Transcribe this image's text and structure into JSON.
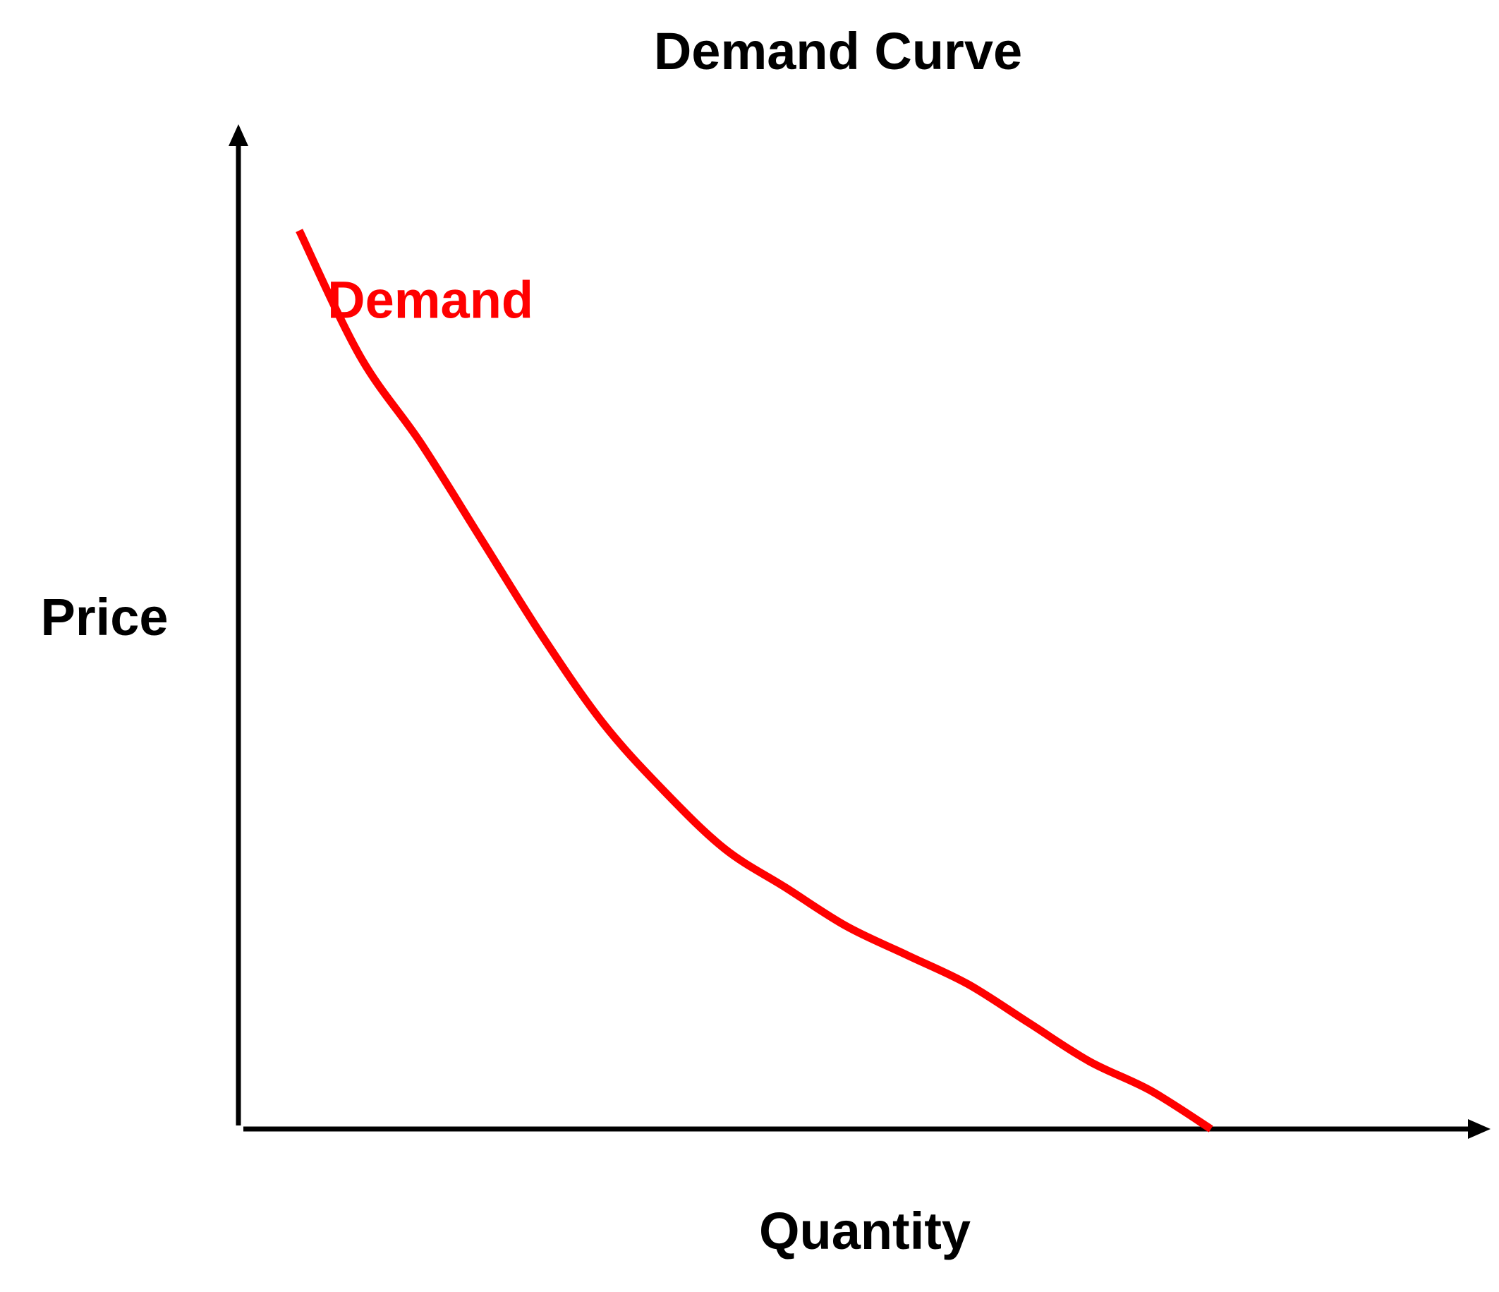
{
  "chart_data": {
    "type": "line",
    "title": "Demand Curve",
    "xlabel": "Quantity",
    "ylabel": "Price",
    "grid": false,
    "axes_arrows": true,
    "tick_labels": false,
    "series": [
      {
        "name": "Demand",
        "color": "#ff0000",
        "x": [
          0.05,
          0.1,
          0.15,
          0.2,
          0.25,
          0.3,
          0.35,
          0.4,
          0.45,
          0.5,
          0.55,
          0.6,
          0.65,
          0.7,
          0.75,
          0.8
        ],
        "y": [
          0.93,
          0.8,
          0.71,
          0.61,
          0.51,
          0.42,
          0.35,
          0.29,
          0.25,
          0.21,
          0.18,
          0.15,
          0.11,
          0.07,
          0.04,
          0.0
        ]
      }
    ],
    "xlim": [
      0,
      1.03
    ],
    "ylim": [
      0,
      1.04
    ]
  }
}
